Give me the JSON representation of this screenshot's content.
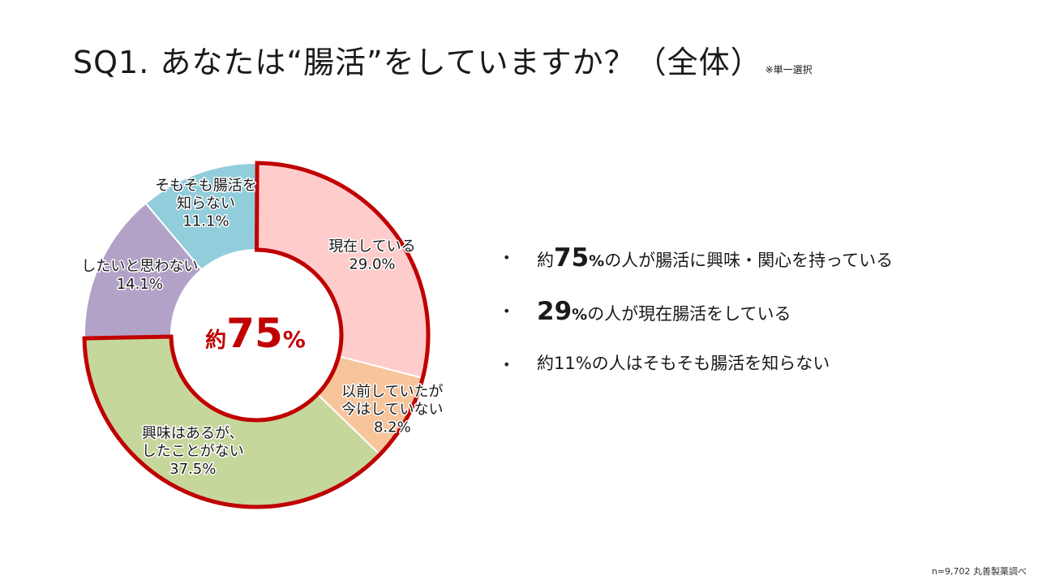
{
  "title": {
    "text": "SQ1.  あなたは“腸活”をしていますか？（全体）",
    "note": "※単一選択"
  },
  "chart_data": {
    "type": "pie",
    "donut": true,
    "categories": [
      "現在している",
      "以前していたが今はしていない",
      "興味はあるが、したことがない",
      "したいと思わない",
      "そもそも腸活を知らない"
    ],
    "values": [
      29.0,
      8.2,
      37.5,
      14.1,
      11.1
    ],
    "labels": [
      [
        "現在している",
        "29.0%"
      ],
      [
        "以前していたが",
        "今はしていない",
        "8.2%"
      ],
      [
        "興味はあるが、",
        "したことがない",
        "37.5%"
      ],
      [
        "したいと思わない",
        "14.1%"
      ],
      [
        "そもそも腸活を",
        "知らない",
        "11.1%"
      ]
    ],
    "colors": [
      "#ffcccc",
      "#f8c49a",
      "#c6d79c",
      "#b3a2c8",
      "#92cddc"
    ],
    "highlight_color": "#c00000",
    "highlight_indices": [
      0,
      1,
      2
    ],
    "center": {
      "small": "約",
      "big": "75",
      "pct": "%"
    }
  },
  "bullets": [
    {
      "pre": "約",
      "big": "75",
      "pct": "%",
      "rest": "の人が腸活に興味・関心を持っている"
    },
    {
      "pre": "",
      "big": "29",
      "pct": "%",
      "rest": "の人が現在腸活をしている"
    },
    {
      "pre": "",
      "big": "",
      "pct": "",
      "rest": "約11%の人はそもそも腸活を知らない"
    }
  ],
  "source": "n=9,702  丸善製薬調べ"
}
